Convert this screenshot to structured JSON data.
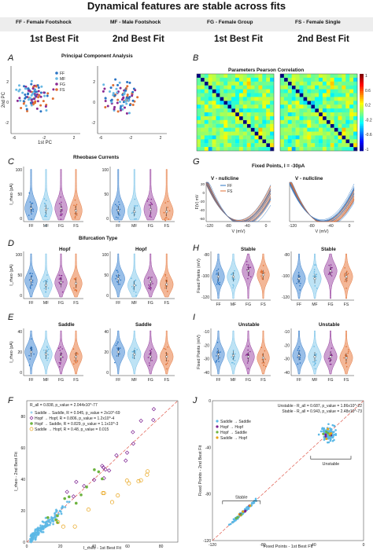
{
  "title": "Dynamical features are stable across fits",
  "abbreviations": [
    "FF - Female Footshock",
    "MF - Male Footshock",
    "FG - Female Group",
    "FS - Female Single"
  ],
  "fit_headers": [
    "1st Best Fit",
    "2nd Best Fit",
    "1st Best Fit",
    "2nd Best Fit"
  ],
  "groups": [
    "FF",
    "MF",
    "FG",
    "FS"
  ],
  "colors": {
    "FF": "#2b74c4",
    "MF": "#67b8e3",
    "FG": "#8a2a92",
    "FS": "#e06f33",
    "FF_light": "#8fb9e6",
    "MF_light": "#b8e0f4",
    "FG_light": "#c796cc",
    "FS_light": "#f2b08c",
    "diag": "#e05a4d"
  },
  "panels": {
    "A": {
      "letter": "A",
      "title": "Principal Component Analysis",
      "xlabel": "1st PC",
      "ylabel": "2nd PC"
    },
    "B": {
      "letter": "B",
      "title": "Parameters Pearson Correlation",
      "colorbar_ticks": [
        "1",
        "0.6",
        "0.2",
        "-0.2",
        "-0.6",
        "-1"
      ]
    },
    "C": {
      "letter": "C",
      "title": "Rheobase Currents",
      "ylabel": "I_rheo (pA)"
    },
    "D": {
      "letter": "D",
      "title": "Bifurcation Type",
      "sub": "Hopf",
      "ylabel": "I_rheo (pA)"
    },
    "E": {
      "letter": "E",
      "sub": "Saddle",
      "ylabel": "I_rheo (pA)"
    },
    "F": {
      "letter": "F",
      "xlabel": "I_rheo - 1st Best Fit",
      "ylabel": "I_rheo - 2nd Best Fit",
      "stat": "R_all = 0.838, p_value = 2.044x10^-77",
      "legend": [
        "Saddle→ Saddle, R = 0.945, p_value = 2x10^-69",
        "Hopf → Hopf, R = 0.806, p_value = 1.2x10^-4",
        "Hopf → Saddle, R = 0.829, p_value = 1.1x10^-3",
        "Saddle → Hopf, R = 0.48, p_value = 0.015"
      ]
    },
    "G": {
      "letter": "G",
      "title": "Fixed Points, I = -30pA",
      "sub": "V - nullcline",
      "xlabel": "V (mV)",
      "ylabel": "F(V) mV"
    },
    "H": {
      "letter": "H",
      "sub": "Stable",
      "ylabel": "Fixed Points (mV)"
    },
    "I": {
      "letter": "I",
      "sub": "Unstable",
      "ylabel": "Fixed Points (mV)"
    },
    "J": {
      "letter": "J",
      "xlabel": "Fixed Points - 1st Best Fit",
      "ylabel": "Fixed Points - 2nd Best Fit",
      "stat1": "Unstable - R_all = 0.687, p_value = 1.86x10^-22",
      "stat2": "Stable - R_all = 0.943, p_value = 2.48x10^-73",
      "legend": [
        "Saddle → Saddle",
        "Hopf → Hopf",
        "Hopf → Saddle",
        "Saddle → Hopf"
      ],
      "label_stable": "Stable",
      "label_unstable": "Unstable"
    }
  },
  "chart_data": [
    {
      "type": "scatter",
      "panel": "A",
      "x_ticks": [
        "-6",
        "-2",
        "2"
      ],
      "y_ticks": [
        "2",
        "0",
        "-2"
      ],
      "legend": [
        "FF",
        "MF",
        "FG",
        "FS"
      ]
    },
    {
      "type": "heatmap",
      "panel": "B"
    },
    {
      "type": "violin",
      "panel": "C",
      "y_ticks_left": [
        "100",
        "50",
        "0"
      ],
      "y_ticks_right": [
        "100",
        "50",
        "0"
      ],
      "categories": [
        "FF",
        "MF",
        "FG",
        "FS"
      ],
      "medians_fit1": [
        24,
        22,
        24,
        20
      ],
      "medians_fit2": [
        20,
        18,
        22,
        18
      ]
    },
    {
      "type": "violin",
      "panel": "D",
      "y_ticks_left": [
        "100",
        "50",
        "0"
      ],
      "categories": [
        "FF",
        "MF",
        "FG",
        "FS"
      ],
      "medians_fit1": [
        38,
        28,
        34,
        32
      ],
      "medians_fit2": [
        42,
        28,
        36,
        30
      ]
    },
    {
      "type": "violin",
      "panel": "E",
      "y_ticks_left": [
        "40",
        "20",
        "0"
      ],
      "categories": [
        "FF",
        "MF",
        "FG",
        "FS"
      ],
      "medians_fit1": [
        20,
        18,
        16,
        16
      ],
      "medians_fit2": [
        20,
        18,
        16,
        16
      ]
    },
    {
      "type": "line",
      "panel": "G",
      "x_ticks": [
        "-120",
        "-80",
        "-40",
        "0"
      ],
      "y_ticks": [
        "20",
        "0",
        "-20",
        "-40",
        "-60"
      ],
      "legend": [
        "FF",
        "FS"
      ]
    },
    {
      "type": "violin",
      "panel": "H",
      "y_ticks": [
        "-80",
        "-100",
        "-120"
      ],
      "categories": [
        "FF",
        "MF",
        "FG",
        "FS"
      ],
      "medians_fit1": [
        -96,
        -96,
        -90,
        -94
      ],
      "medians_fit2": [
        -98,
        -98,
        -90,
        -96
      ]
    },
    {
      "type": "violin",
      "panel": "I",
      "y_ticks": [
        "-10",
        "-20",
        "-30",
        "-40"
      ],
      "categories": [
        "FF",
        "MF",
        "FG",
        "FS"
      ],
      "medians_fit1": [
        -27,
        -28,
        -29,
        -30
      ],
      "medians_fit2": [
        -28,
        -29,
        -29,
        -30
      ]
    },
    {
      "type": "scatter",
      "panel": "F",
      "x_ticks": [
        "0",
        "20",
        "40",
        "60",
        "80"
      ],
      "y_ticks": [
        "0",
        "20",
        "40",
        "60",
        "80"
      ],
      "xlim": [
        0,
        90
      ],
      "ylim": [
        0,
        90
      ]
    },
    {
      "type": "scatter",
      "panel": "J",
      "x_ticks": [
        "-120",
        "-80",
        "-40",
        "0"
      ],
      "y_ticks": [
        "-120",
        "-80",
        "-40",
        "0"
      ],
      "xlim": [
        -120,
        0
      ],
      "ylim": [
        -120,
        0
      ]
    }
  ]
}
